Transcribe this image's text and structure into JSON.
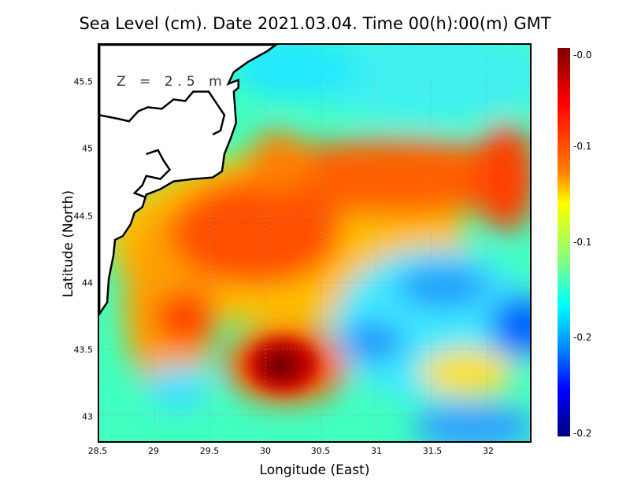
{
  "title": "Sea Level (cm). Date 2021.03.04. Time 00(h):00(m) GMT",
  "depth_label": "Z = 2.5 m",
  "chart_data": {
    "type": "heatmap",
    "title": "Sea Level (cm). Date 2021.03.04. Time 00(h):00(m) GMT",
    "xlabel": "Longitude (East)",
    "ylabel": "Latitude (North)",
    "xlim": [
      28.5,
      32.39
    ],
    "ylim": [
      42.81,
      45.79
    ],
    "x_ticks": [
      "28.5",
      "29",
      "29.5",
      "30",
      "30.5",
      "31",
      "31.5",
      "32"
    ],
    "y_ticks": [
      "45.5",
      "45",
      "44.5",
      "44",
      "43.5",
      "43"
    ],
    "grid": true,
    "colorbar": {
      "ticks": [
        "-0.0",
        "-0.1",
        "-0.1",
        "-0.2",
        "-0.2"
      ],
      "colormap": "jet"
    },
    "features": [
      {
        "desc": "maximum",
        "lon": 30.15,
        "lat": 43.35
      },
      {
        "desc": "high band",
        "lon": 30.8,
        "lat": 44.6
      },
      {
        "desc": "low",
        "lon": 32.35,
        "lat": 43.7
      },
      {
        "desc": "low",
        "lon": 31.6,
        "lat": 44.0
      }
    ]
  }
}
